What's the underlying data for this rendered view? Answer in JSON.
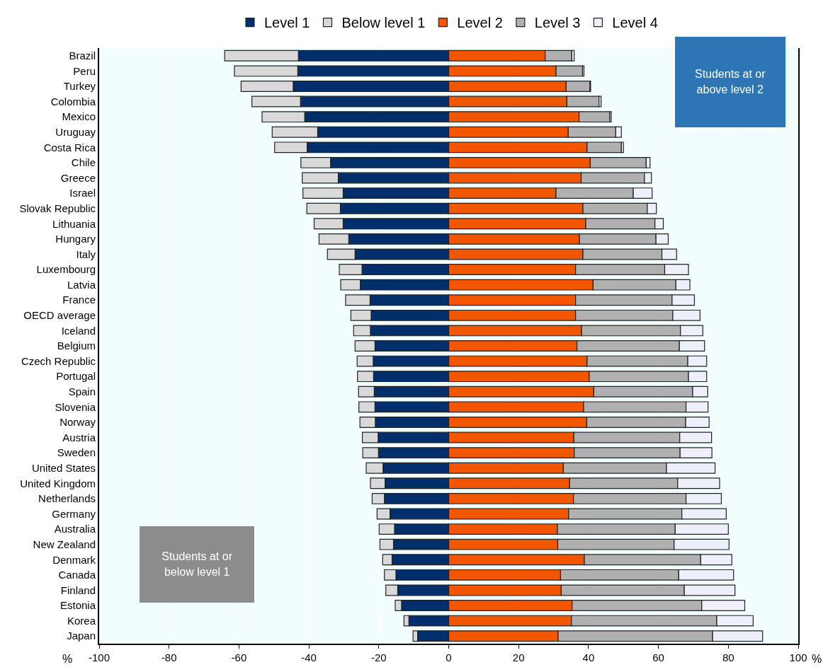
{
  "chart_data": {
    "type": "bar",
    "orientation": "horizontal",
    "stacked": true,
    "categories": [
      "Brazil",
      "Peru",
      "Turkey",
      "Colombia",
      "Mexico",
      "Uruguay",
      "Costa Rica",
      "Chile",
      "Greece",
      "Israel",
      "Slovak Republic",
      "Lithuania",
      "Hungary",
      "Italy",
      "Luxembourg",
      "Latvia",
      "France",
      "OECD average",
      "Iceland",
      "Belgium",
      "Czech Republic",
      "Portugal",
      "Spain",
      "Slovenia",
      "Norway",
      "Austria",
      "Sweden",
      "United States",
      "United Kingdom",
      "Netherlands",
      "Germany",
      "Australia",
      "New Zealand",
      "Denmark",
      "Canada",
      "Finland",
      "Estonia",
      "Korea",
      "Japan"
    ],
    "series": [
      {
        "name": "Level 1",
        "color": "#002f6c",
        "values": [
          -43.0,
          -43.2,
          -44.5,
          -42.4,
          -41.2,
          -37.5,
          -40.5,
          -33.8,
          -31.6,
          -30.2,
          -31.0,
          -30.2,
          -28.6,
          -26.8,
          -24.8,
          -25.3,
          -22.5,
          -22.2,
          -22.4,
          -21.1,
          -21.6,
          -21.5,
          -21.3,
          -21.1,
          -21.0,
          -20.2,
          -20.1,
          -18.8,
          -18.2,
          -18.4,
          -16.8,
          -15.5,
          -15.8,
          -16.2,
          -15.1,
          -14.6,
          -13.5,
          -11.4,
          -8.9
        ]
      },
      {
        "name": "Below level 1",
        "color": "#d9d9d9",
        "values": [
          -21.1,
          -18.1,
          -14.9,
          -13.9,
          -12.2,
          -13.0,
          -9.3,
          -8.5,
          -10.3,
          -11.5,
          -9.6,
          -8.3,
          -8.5,
          -7.9,
          -6.5,
          -5.6,
          -7.0,
          -5.8,
          -4.8,
          -5.7,
          -4.6,
          -4.6,
          -4.5,
          -4.6,
          -4.4,
          -4.5,
          -4.5,
          -4.8,
          -4.2,
          -3.5,
          -3.7,
          -4.4,
          -3.9,
          -2.7,
          -3.3,
          -3.4,
          -1.8,
          -1.4,
          -1.3
        ]
      },
      {
        "name": "Level 2",
        "color": "#f25600",
        "values": [
          27.6,
          30.7,
          33.6,
          33.8,
          37.3,
          34.2,
          39.6,
          40.5,
          37.9,
          30.7,
          38.4,
          39.2,
          37.4,
          38.4,
          36.3,
          41.3,
          36.3,
          36.3,
          38.0,
          36.7,
          39.6,
          40.2,
          41.5,
          38.6,
          39.5,
          35.8,
          35.9,
          32.8,
          34.6,
          35.7,
          34.3,
          31.1,
          31.2,
          38.8,
          32.0,
          32.2,
          35.3,
          35.1,
          31.3
        ]
      },
      {
        "name": "Level 3",
        "color": "#b0b0b0",
        "values": [
          7.6,
          7.6,
          6.8,
          9.2,
          8.8,
          13.6,
          9.8,
          16.0,
          18.1,
          22.1,
          18.4,
          19.8,
          21.9,
          22.6,
          25.5,
          23.7,
          27.6,
          27.8,
          28.3,
          29.3,
          28.8,
          28.4,
          28.3,
          29.3,
          28.3,
          30.3,
          30.3,
          29.5,
          30.9,
          32.2,
          32.4,
          33.7,
          33.3,
          33.3,
          33.8,
          35.2,
          37.1,
          41.6,
          44.2
        ]
      },
      {
        "name": "Level 4",
        "color": "#edf0fa",
        "values": [
          0.7,
          0.4,
          0.2,
          0.6,
          0.4,
          1.6,
          0.6,
          1.1,
          2.0,
          5.4,
          2.6,
          2.4,
          3.5,
          4.2,
          6.8,
          4.0,
          6.4,
          7.8,
          6.4,
          7.2,
          5.4,
          5.2,
          4.3,
          6.3,
          6.7,
          9.1,
          9.1,
          13.9,
          12.0,
          10.1,
          12.7,
          15.2,
          15.7,
          8.9,
          15.7,
          14.5,
          12.3,
          10.4,
          14.3
        ]
      }
    ],
    "xlim": [
      -100,
      100
    ],
    "xticks": [
      -100,
      -80,
      -60,
      -40,
      -20,
      0,
      20,
      40,
      60,
      80,
      100
    ],
    "grid": "x",
    "legend": "top",
    "annotations": [
      "Students at or above level 2",
      "Students at or below level 1",
      "%",
      "%"
    ]
  }
}
